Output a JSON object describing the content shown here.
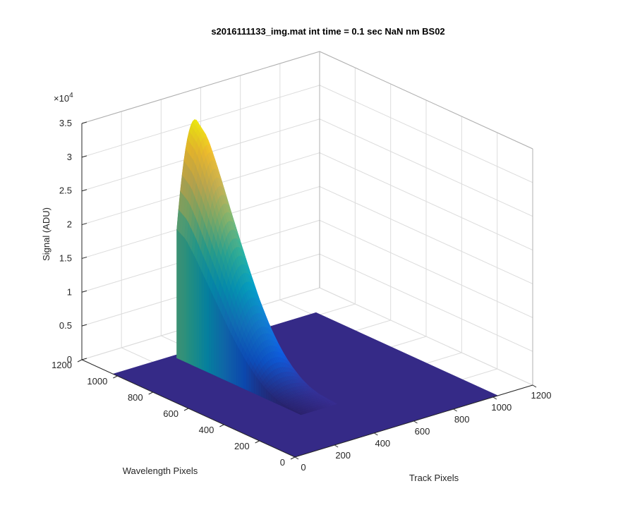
{
  "chart_data": {
    "type": "surface",
    "title": "s2016111133_img.mat int time = 0.1 sec  NaN nm BS02",
    "xlabel": "Track Pixels",
    "ylabel": "Wavelength Pixels",
    "zlabel": "Signal (ADU)",
    "z_exponent_label": "×10",
    "z_exponent_power": "4",
    "xlim": [
      0,
      1200
    ],
    "ylim": [
      0,
      1200
    ],
    "zlim": [
      0,
      35000
    ],
    "x_ticks": [
      {
        "value": 0,
        "label": "0"
      },
      {
        "value": 200,
        "label": "200"
      },
      {
        "value": 400,
        "label": "400"
      },
      {
        "value": 600,
        "label": "600"
      },
      {
        "value": 800,
        "label": "800"
      },
      {
        "value": 1000,
        "label": "1000"
      },
      {
        "value": 1200,
        "label": "1200"
      }
    ],
    "y_ticks": [
      {
        "value": 0,
        "label": "0"
      },
      {
        "value": 200,
        "label": "200"
      },
      {
        "value": 400,
        "label": "400"
      },
      {
        "value": 600,
        "label": "600"
      },
      {
        "value": 800,
        "label": "800"
      },
      {
        "value": 1000,
        "label": "1000"
      },
      {
        "value": 1200,
        "label": "1200"
      }
    ],
    "z_ticks": [
      {
        "value": 0,
        "label": "0"
      },
      {
        "value": 5000,
        "label": "0.5"
      },
      {
        "value": 10000,
        "label": "1"
      },
      {
        "value": 15000,
        "label": "1.5"
      },
      {
        "value": 20000,
        "label": "2"
      },
      {
        "value": 25000,
        "label": "2.5"
      },
      {
        "value": 30000,
        "label": "3"
      },
      {
        "value": 35000,
        "label": "3.5"
      }
    ],
    "grid": true,
    "colormap": "parula",
    "colormap_colors": [
      "#352a87",
      "#0f5cdd",
      "#1481d6",
      "#06a4ca",
      "#2eb7a4",
      "#87bf77",
      "#d1bb59",
      "#fec832",
      "#f9fb0e"
    ],
    "data_extent": {
      "x": [
        0,
        1024
      ],
      "y": [
        0,
        1024
      ]
    },
    "baseline": 0,
    "peak_track_range": [
      300,
      480
    ],
    "peak_wavelength_start": 1000,
    "peak_wavelength_end": 300,
    "profile": [
      {
        "wavelength": 1000,
        "z": 34500
      },
      {
        "wavelength": 950,
        "z": 33000
      },
      {
        "wavelength": 900,
        "z": 29500
      },
      {
        "wavelength": 850,
        "z": 25500
      },
      {
        "wavelength": 800,
        "z": 21500
      },
      {
        "wavelength": 750,
        "z": 17500
      },
      {
        "wavelength": 700,
        "z": 13500
      },
      {
        "wavelength": 650,
        "z": 10000
      },
      {
        "wavelength": 600,
        "z": 7000
      },
      {
        "wavelength": 550,
        "z": 4500
      },
      {
        "wavelength": 500,
        "z": 2500
      },
      {
        "wavelength": 450,
        "z": 1200
      },
      {
        "wavelength": 400,
        "z": 500
      },
      {
        "wavelength": 300,
        "z": 0
      }
    ]
  }
}
